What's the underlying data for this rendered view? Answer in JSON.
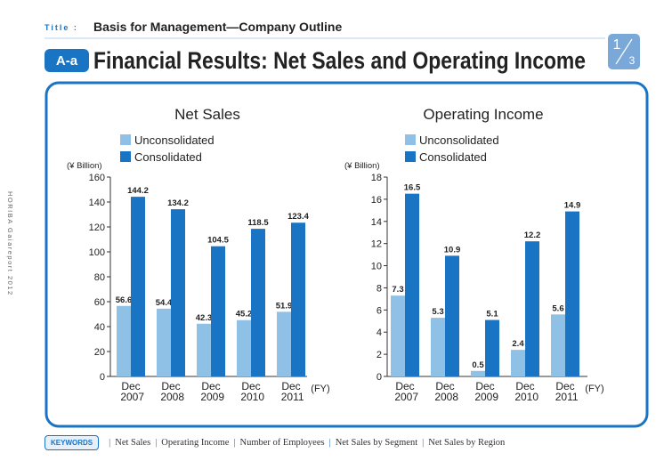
{
  "header": {
    "label": "Title :",
    "section": "Basis for Management—Company Outline",
    "badge": "A-a",
    "title": "Financial Results: Net Sales and Operating Income",
    "page_num": "1",
    "page_total": "3"
  },
  "side_text": "HORIBA Gaiareport 2012",
  "chart_data": [
    {
      "type": "bar",
      "title": "Net Sales",
      "y_label": "(¥ Billion)",
      "x_label": "(FY)",
      "categories": [
        "Dec 2007",
        "Dec 2008",
        "Dec 2009",
        "Dec 2010",
        "Dec 2011"
      ],
      "series": [
        {
          "name": "Unconsolidated",
          "color": "#8fc1e6",
          "values": [
            56.6,
            54.4,
            42.3,
            45.2,
            51.9
          ]
        },
        {
          "name": "Consolidated",
          "color": "#1a74c4",
          "values": [
            144.2,
            134.2,
            104.5,
            118.5,
            123.4
          ]
        }
      ],
      "ylim": [
        0,
        160
      ],
      "yticks": [
        0,
        20,
        40,
        60,
        80,
        100,
        120,
        140,
        160
      ]
    },
    {
      "type": "bar",
      "title": "Operating Income",
      "y_label": "(¥ Billion)",
      "x_label": "(FY)",
      "categories": [
        "Dec 2007",
        "Dec 2008",
        "Dec 2009",
        "Dec 2010",
        "Dec 2011"
      ],
      "series": [
        {
          "name": "Unconsolidated",
          "color": "#8fc1e6",
          "values": [
            7.3,
            5.3,
            0.5,
            2.4,
            5.6
          ]
        },
        {
          "name": "Consolidated",
          "color": "#1a74c4",
          "values": [
            16.5,
            10.9,
            5.1,
            12.2,
            14.9
          ]
        }
      ],
      "ylim": [
        0,
        18
      ],
      "yticks": [
        0,
        2,
        4,
        6,
        8,
        10,
        12,
        14,
        16,
        18
      ]
    }
  ],
  "keywords": {
    "label": "KEYWORDS",
    "items": [
      "Net Sales",
      "Operating Income",
      "Number of Employees",
      "Net Sales by Segment",
      "Net Sales by Region"
    ]
  }
}
